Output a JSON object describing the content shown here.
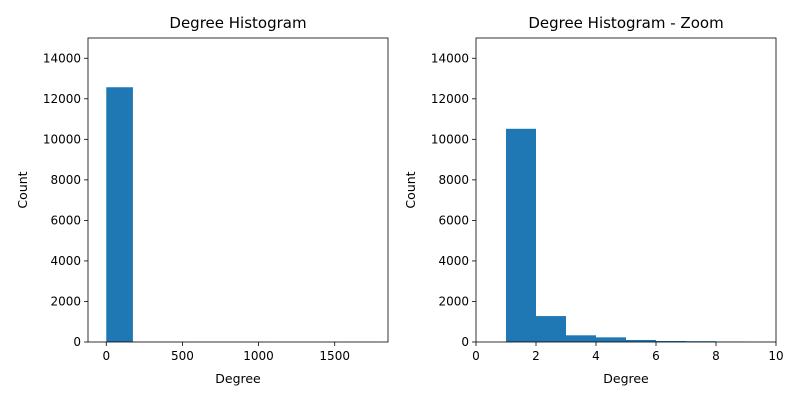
{
  "chart_data": [
    {
      "type": "bar",
      "title": "Degree Histogram",
      "xlabel": "Degree",
      "ylabel": "Count",
      "xlim": [
        -120,
        1850
      ],
      "ylim": [
        0,
        15000
      ],
      "xticks": [
        "0",
        "500",
        "1000",
        "1500"
      ],
      "xtick_values": [
        0,
        500,
        1000,
        1500
      ],
      "yticks": [
        "0",
        "2000",
        "4000",
        "6000",
        "8000",
        "10000",
        "12000",
        "14000"
      ],
      "ytick_values": [
        0,
        2000,
        4000,
        6000,
        8000,
        10000,
        12000,
        14000
      ],
      "bins": [
        {
          "x0": 0,
          "x1": 175,
          "count": 12570
        },
        {
          "x0": 175,
          "x1": 350,
          "count": 8
        },
        {
          "x0": 350,
          "x1": 525,
          "count": 3
        },
        {
          "x0": 525,
          "x1": 700,
          "count": 2
        },
        {
          "x0": 700,
          "x1": 875,
          "count": 1
        },
        {
          "x0": 875,
          "x1": 1050,
          "count": 1
        },
        {
          "x0": 1050,
          "x1": 1225,
          "count": 0
        },
        {
          "x0": 1225,
          "x1": 1400,
          "count": 0
        },
        {
          "x0": 1400,
          "x1": 1575,
          "count": 0
        },
        {
          "x0": 1575,
          "x1": 1750,
          "count": 1
        }
      ],
      "color": "#1f77b4",
      "grid": false
    },
    {
      "type": "bar",
      "title": "Degree Histogram - Zoom",
      "xlabel": "Degree",
      "ylabel": "Count",
      "xlim": [
        0,
        10
      ],
      "ylim": [
        0,
        15000
      ],
      "xticks": [
        "0",
        "2",
        "4",
        "6",
        "8",
        "10"
      ],
      "xtick_values": [
        0,
        2,
        4,
        6,
        8,
        10
      ],
      "yticks": [
        "0",
        "2000",
        "4000",
        "6000",
        "8000",
        "10000",
        "12000",
        "14000"
      ],
      "ytick_values": [
        0,
        2000,
        4000,
        6000,
        8000,
        10000,
        12000,
        14000
      ],
      "bins": [
        {
          "x0": 1,
          "x1": 2,
          "count": 10520
        },
        {
          "x0": 2,
          "x1": 3,
          "count": 1280
        },
        {
          "x0": 3,
          "x1": 4,
          "count": 330
        },
        {
          "x0": 4,
          "x1": 5,
          "count": 230
        },
        {
          "x0": 5,
          "x1": 6,
          "count": 100
        },
        {
          "x0": 6,
          "x1": 7,
          "count": 50
        },
        {
          "x0": 7,
          "x1": 8,
          "count": 40
        },
        {
          "x0": 8,
          "x1": 9,
          "count": 15
        },
        {
          "x0": 9,
          "x1": 10,
          "count": 10
        }
      ],
      "color": "#1f77b4",
      "grid": false
    }
  ]
}
